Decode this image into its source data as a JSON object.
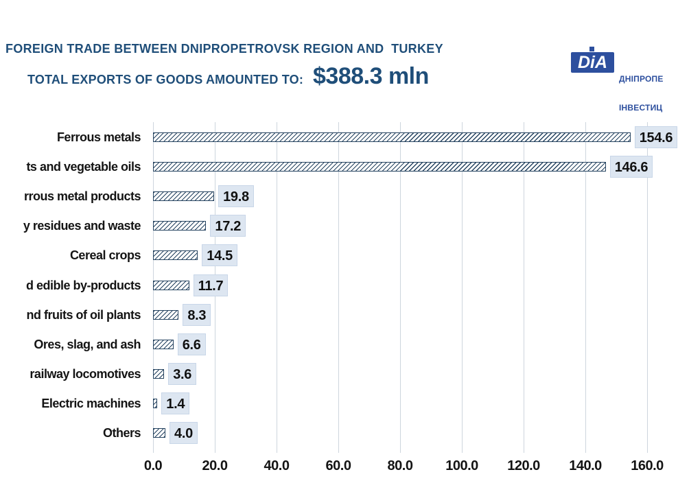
{
  "slide": {
    "title": "FOREIGN TRADE BETWEEN DNIPROPETROVSK REGION AND  TURKEY",
    "subtitle_label": "TOTAL EXPORTS OF GOODS AMOUNTED TO:",
    "total_value": "$388.3 mln",
    "accent_color": "#1F4E79"
  },
  "logo": {
    "monogram": "DiA",
    "org_line1": "ДНІПРОПЕ",
    "org_line2": "ІНВЕСТИЦ",
    "brand_color": "#2D4F9E"
  },
  "chart_data": {
    "type": "bar",
    "orientation": "horizontal",
    "title": "FOREIGN TRADE BETWEEN DNIPROPETROVSK REGION AND TURKEY — TOTAL EXPORTS OF GOODS: $388.3 mln",
    "categories": [
      "Ferrous metals",
      "ts and vegetable oils",
      "rrous metal products",
      "y residues and waste",
      "Cereal crops",
      "d edible by-products",
      "nd fruits of oil plants",
      "Ores, slag, and ash",
      "railway locomotives",
      "Electric machines",
      "Others"
    ],
    "values": [
      154.6,
      146.6,
      19.8,
      17.2,
      14.5,
      11.7,
      8.3,
      6.6,
      3.6,
      1.4,
      4.0
    ],
    "value_labels": [
      "154.6",
      "146.6",
      "19.8",
      "17.2",
      "14.5",
      "11.7",
      "8.3",
      "6.6",
      "3.6",
      "1.4",
      "4.0"
    ],
    "xticks": [
      0,
      20,
      40,
      60,
      80,
      100,
      120,
      140,
      160
    ],
    "xtick_labels": [
      "0.0",
      "20.0",
      "40.0",
      "60.0",
      "80.0",
      "100.0",
      "120.0",
      "140.0",
      "160.0"
    ],
    "xlim": [
      0,
      160
    ],
    "xlabel": "",
    "ylabel": "",
    "grid": "vertical",
    "legend": "none",
    "bar_hatch_color": "#24425F",
    "bar_fill": "#FFFFFF",
    "value_box_bg": "#DDE6F1",
    "gridline_color": "#CDD5DD"
  }
}
